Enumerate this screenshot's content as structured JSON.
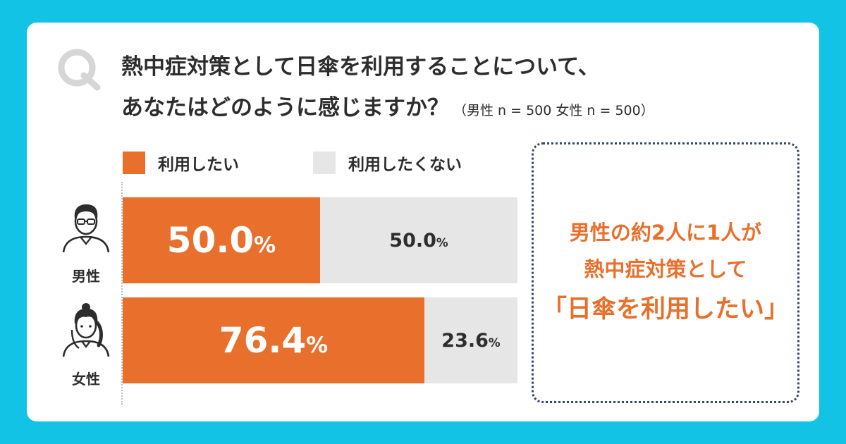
{
  "colors": {
    "background": "#12c3e6",
    "yes": "#e86f2c",
    "no": "#e6e6e6",
    "callout": "#e86f2c"
  },
  "question": {
    "mark": "Q",
    "line1": "熱中症対策として日傘を利用することについて、",
    "line2": "あなたはどのように感じますか？",
    "sample": "（男性 n = 500 女性 n = 500）"
  },
  "chart_data": {
    "type": "bar",
    "orientation": "horizontal",
    "stacked": true,
    "categories": [
      "男性",
      "女性"
    ],
    "series": [
      {
        "name": "利用したい",
        "values": [
          50.0,
          76.4
        ]
      },
      {
        "name": "利用したくない",
        "values": [
          50.0,
          23.6
        ]
      }
    ],
    "unit": "%",
    "xlim": [
      0,
      100
    ],
    "grid": false,
    "legend": "top-left"
  },
  "callout": {
    "line1": "男性の約2人に1人が",
    "line2": "熱中症対策として",
    "line3": "「日傘を利用したい」"
  }
}
